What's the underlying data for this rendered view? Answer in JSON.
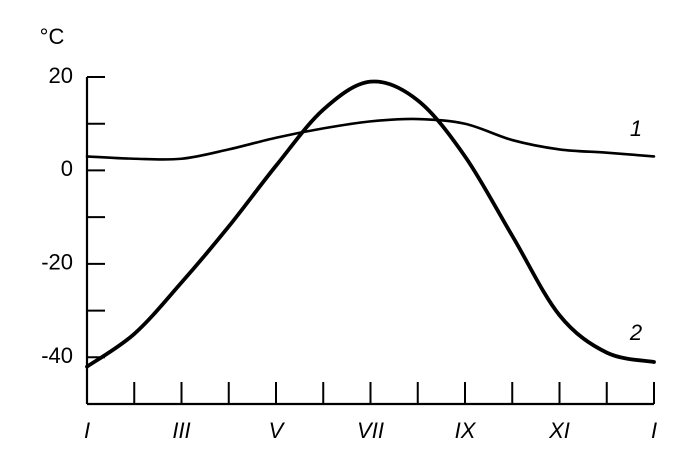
{
  "chart_data": {
    "type": "line",
    "y_label": "°C",
    "categories": [
      "I",
      null,
      "III",
      null,
      "V",
      null,
      "VII",
      null,
      "IX",
      null,
      "XI",
      null,
      "I"
    ],
    "series": [
      {
        "name": "1",
        "color": "#000000",
        "values": [
          3,
          2.5,
          2.5,
          4.5,
          7,
          9,
          10.5,
          11,
          10,
          6.5,
          4.5,
          3.8,
          3
        ]
      },
      {
        "name": "2",
        "color": "#000000",
        "values": [
          -42,
          -35,
          -24,
          -12,
          1,
          13,
          19,
          15,
          3,
          -14,
          -31,
          -39,
          -41
        ]
      }
    ],
    "ylim": [
      -50,
      20
    ],
    "yticks": [
      20,
      0,
      -20,
      -40
    ],
    "yminorticks": [
      10,
      -10,
      -30
    ]
  }
}
